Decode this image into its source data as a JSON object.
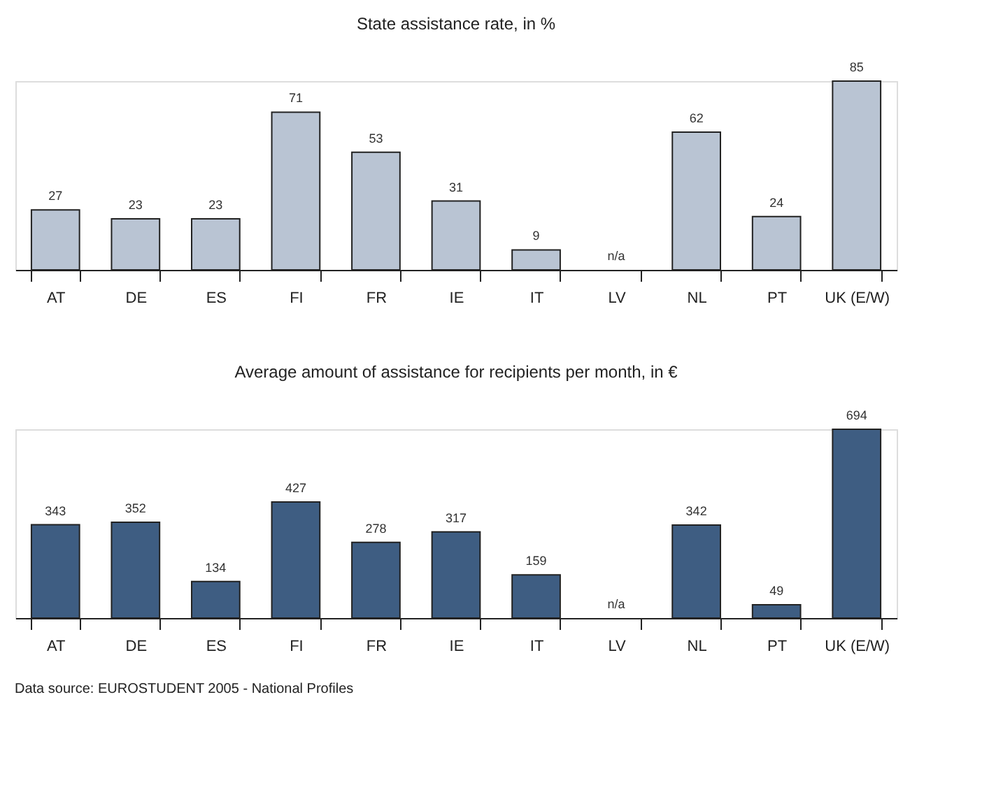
{
  "chart_data": [
    {
      "type": "bar",
      "title": "State assistance rate, in %",
      "categories": [
        "AT",
        "DE",
        "ES",
        "FI",
        "FR",
        "IE",
        "IT",
        "LV",
        "NL",
        "PT",
        "UK (E/W)"
      ],
      "values": [
        27,
        23,
        23,
        71,
        53,
        31,
        9,
        null,
        62,
        24,
        85
      ],
      "value_labels": [
        "27",
        "23",
        "23",
        "71",
        "53",
        "31",
        "9",
        "n/a",
        "62",
        "24",
        "85"
      ],
      "color": "#b9c4d3"
    },
    {
      "type": "bar",
      "title": "Average amount of assistance for recipients per month, in €",
      "categories": [
        "AT",
        "DE",
        "ES",
        "FI",
        "FR",
        "IE",
        "IT",
        "LV",
        "NL",
        "PT",
        "UK (E/W)"
      ],
      "values": [
        343,
        352,
        134,
        427,
        278,
        317,
        159,
        null,
        342,
        49,
        694
      ],
      "value_labels": [
        "343",
        "352",
        "134",
        "427",
        "278",
        "317",
        "159",
        "n/a",
        "342",
        "49",
        "694"
      ],
      "color": "#3e5d82",
      "annotations": [
        "Data source: EUROSTUDENT 2005 - National Profiles"
      ]
    }
  ]
}
